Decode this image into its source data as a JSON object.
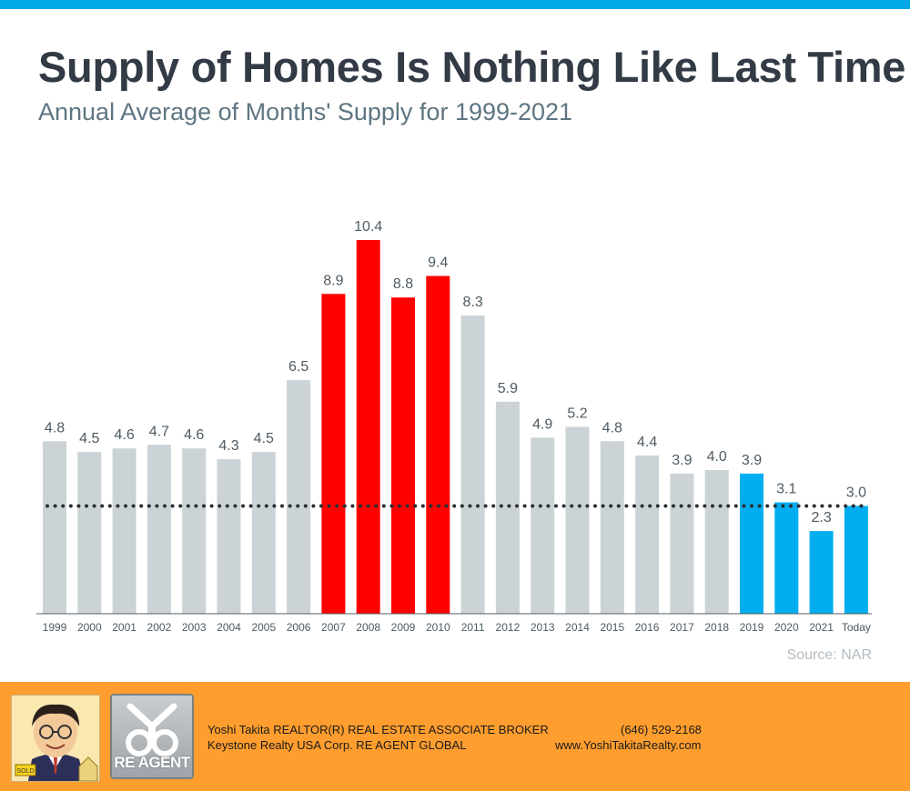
{
  "title": "Supply of Homes Is Nothing Like Last Time",
  "subtitle": "Annual Average of Months' Supply for 1999-2021",
  "source": "Source: NAR",
  "colors": {
    "accent_bar": "#00a8e8",
    "gray": "#cbd3d6",
    "red": "#ff0000",
    "blue": "#00aeef",
    "footer": "#ff9d2e",
    "text_dark": "#323a45",
    "text_sub": "#5f7582",
    "label": "#4d5a63"
  },
  "chart_data": {
    "type": "bar",
    "title": "Supply of Homes Is Nothing Like Last Time",
    "subtitle": "Annual Average of Months' Supply for 1999-2021",
    "xlabel": "",
    "ylabel": "",
    "ylim": [
      0,
      10.4
    ],
    "grid": false,
    "categories": [
      "1999",
      "2000",
      "2001",
      "2002",
      "2003",
      "2004",
      "2005",
      "2006",
      "2007",
      "2008",
      "2009",
      "2010",
      "2011",
      "2012",
      "2013",
      "2014",
      "2015",
      "2016",
      "2017",
      "2018",
      "2019",
      "2020",
      "2021",
      "Today"
    ],
    "values": [
      4.8,
      4.5,
      4.6,
      4.7,
      4.6,
      4.3,
      4.5,
      6.5,
      8.9,
      10.4,
      8.8,
      9.4,
      8.3,
      5.9,
      4.9,
      5.2,
      4.8,
      4.4,
      3.9,
      4.0,
      3.9,
      3.1,
      2.3,
      3.0
    ],
    "value_labels": [
      "4.8",
      "4.5",
      "4.6",
      "4.7",
      "4.6",
      "4.3",
      "4.5",
      "6.5",
      "8.9",
      "10.4",
      "8.8",
      "9.4",
      "8.3",
      "5.9",
      "4.9",
      "5.2",
      "4.8",
      "4.4",
      "3.9",
      "4.0",
      "3.9",
      "3.1",
      "2.3",
      "3.0"
    ],
    "bar_groups": [
      "gray",
      "gray",
      "gray",
      "gray",
      "gray",
      "gray",
      "gray",
      "gray",
      "red",
      "red",
      "red",
      "red",
      "gray",
      "gray",
      "gray",
      "gray",
      "gray",
      "gray",
      "gray",
      "gray",
      "blue",
      "blue",
      "blue",
      "blue"
    ],
    "reference_line": {
      "value": 3.0,
      "style": "dotted"
    },
    "source": "Source: NAR"
  },
  "footer": {
    "agent_name": "Yoshi Takita REALTOR(R) REAL ESTATE ASSOCIATE BROKER",
    "phone": "(646) 529-2168",
    "company": "Keystone Realty USA Corp.  RE AGENT GLOBAL",
    "website": "www.YoshiTakitaRealty.com",
    "logo_text": "RE AGENT",
    "sign_text": "SOLD"
  }
}
